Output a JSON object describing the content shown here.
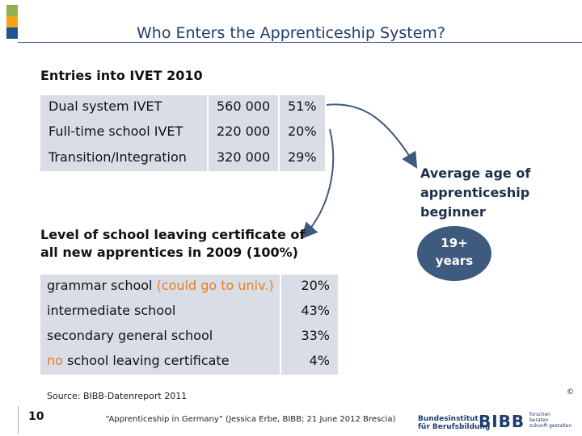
{
  "title": "Who Enters the Apprenticeship System?",
  "section1_heading": "Entries into IVET 2010",
  "entries": [
    {
      "label": "Dual system IVET",
      "count": "560 000",
      "share": "51%"
    },
    {
      "label": "Full-time school IVET",
      "count": "220 000",
      "share": "20%"
    },
    {
      "label": "Transition/Integration",
      "count": "320 000",
      "share": "29%"
    }
  ],
  "section2_heading_line1": "Level of school leaving certificate of",
  "section2_heading_line2": "all new apprentices in 2009  (100%)",
  "levels": [
    {
      "pre": "",
      "highlight_pre": "",
      "label": "grammar school ",
      "highlight": "(could go to univ.)",
      "share": "20%"
    },
    {
      "pre": "",
      "highlight_pre": "",
      "label": "intermediate school",
      "highlight": "",
      "share": "43%"
    },
    {
      "pre": "",
      "highlight_pre": "",
      "label": "secondary general school",
      "highlight": "",
      "share": "33%"
    },
    {
      "pre": "",
      "highlight_pre": "no",
      "label": " school leaving certificate",
      "highlight": "",
      "share": "4%"
    }
  ],
  "avg_age_label_line1": "Average age of",
  "avg_age_label_line2": "apprenticeship",
  "avg_age_label_line3": "beginner",
  "avg_age_value_line1": "19+",
  "avg_age_value_line2": "years",
  "source": "Source: BIBB-Datenreport 2011",
  "page_number": "10",
  "footer": "“Apprenticeship in Germany” (Jessica Erbe, BIBB; 21 June 2012 Brescia)",
  "logo": {
    "institute_line1": "Bundesinstitut",
    "institute_line2": "für Berufsbildung",
    "mark": "BIBB",
    "tagline_line1": "forschen",
    "tagline_line2": "beraten",
    "tagline_line3": "zukunft gestalten"
  },
  "copyright": "©",
  "colors": {
    "title": "#1d3d6e",
    "table_bg": "#d9dde6",
    "highlight": "#e67e22",
    "badge": "#3f5a7f",
    "arrow": "#3f5a7f",
    "squares": [
      "#8fb24f",
      "#f3a21b",
      "#25538f",
      "#6f8fc0"
    ]
  }
}
